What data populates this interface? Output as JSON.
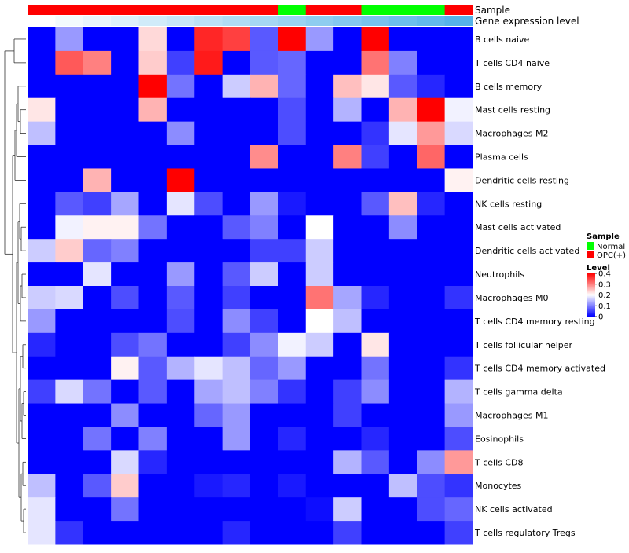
{
  "chart_data": {
    "type": "heatmap",
    "title": "",
    "rows": [
      "B cells naive",
      "T cells CD4 naive",
      "B cells memory",
      "Mast cells resting",
      "Macrophages M2",
      "Plasma cells",
      "Dendritic cells resting",
      "NK cells resting",
      "Mast cells activated",
      "Dendritic cells activated",
      "Neutrophils",
      "Macrophages M0",
      "T cells CD4 memory resting",
      "T cells follicular helper",
      "T cells CD4 memory activated",
      "T cells gamma delta",
      "Macrophages M1",
      "Eosinophils",
      "T cells CD8",
      "Monocytes",
      "NK cells activated",
      "T cells regulatory  Tregs"
    ],
    "column_count": 16,
    "sample_annotation": {
      "label": "Sample",
      "values": [
        "OPC(+)",
        "OPC(+)",
        "OPC(+)",
        "OPC(+)",
        "OPC(+)",
        "OPC(+)",
        "OPC(+)",
        "OPC(+)",
        "OPC(+)",
        "Normal",
        "OPC(+)",
        "OPC(+)",
        "Normal",
        "Normal",
        "Normal",
        "OPC(+)"
      ]
    },
    "expression_annotation": {
      "label": "Gene expression level",
      "values": [
        0.0,
        0.07,
        0.13,
        0.2,
        0.27,
        0.33,
        0.4,
        0.47,
        0.53,
        0.6,
        0.67,
        0.73,
        0.8,
        0.87,
        0.93,
        1.0
      ]
    },
    "values": [
      [
        0.0,
        0.12,
        0.0,
        0.0,
        0.23,
        0.0,
        0.37,
        0.35,
        0.07,
        0.4,
        0.12,
        0.0,
        0.4,
        0.0,
        0.0,
        0.0
      ],
      [
        0.0,
        0.33,
        0.3,
        0.0,
        0.24,
        0.05,
        0.38,
        0.0,
        0.07,
        0.08,
        0.0,
        0.0,
        0.31,
        0.1,
        0.0,
        0.0
      ],
      [
        0.0,
        0.0,
        0.0,
        0.0,
        0.4,
        0.09,
        0.0,
        0.16,
        0.26,
        0.08,
        0.0,
        0.25,
        0.22,
        0.07,
        0.03,
        0.0
      ],
      [
        0.22,
        0.0,
        0.0,
        0.0,
        0.26,
        0.0,
        0.0,
        0.0,
        0.0,
        0.06,
        0.0,
        0.14,
        0.0,
        0.26,
        0.4,
        0.19
      ],
      [
        0.15,
        0.0,
        0.0,
        0.0,
        0.0,
        0.11,
        0.0,
        0.0,
        0.0,
        0.06,
        0.0,
        0.0,
        0.04,
        0.18,
        0.28,
        0.17
      ],
      [
        0.0,
        0.0,
        0.0,
        0.0,
        0.0,
        0.0,
        0.0,
        0.0,
        0.29,
        0.0,
        0.0,
        0.3,
        0.05,
        0.0,
        0.32,
        0.0
      ],
      [
        0.0,
        0.0,
        0.26,
        0.0,
        0.0,
        0.4,
        0.0,
        0.0,
        0.0,
        0.0,
        0.0,
        0.0,
        0.0,
        0.0,
        0.0,
        0.21
      ],
      [
        0.0,
        0.07,
        0.05,
        0.13,
        0.0,
        0.18,
        0.06,
        0.0,
        0.12,
        0.02,
        0.0,
        0.0,
        0.07,
        0.25,
        0.03,
        0.0
      ],
      [
        0.0,
        0.19,
        0.21,
        0.21,
        0.09,
        0.0,
        0.0,
        0.07,
        0.1,
        0.0,
        0.2,
        0.0,
        0.0,
        0.11,
        0.0,
        0.0
      ],
      [
        0.16,
        0.24,
        0.08,
        0.1,
        0.0,
        0.0,
        0.0,
        0.0,
        0.05,
        0.05,
        0.16,
        0.0,
        0.0,
        0.0,
        0.0,
        0.0
      ],
      [
        0.0,
        0.0,
        0.18,
        0.0,
        0.0,
        0.12,
        0.0,
        0.07,
        0.16,
        0.0,
        0.16,
        0.0,
        0.0,
        0.0,
        0.0,
        0.0
      ],
      [
        0.16,
        0.17,
        0.0,
        0.06,
        0.0,
        0.07,
        0.0,
        0.05,
        0.0,
        0.0,
        0.31,
        0.13,
        0.03,
        0.0,
        0.0,
        0.04
      ],
      [
        0.12,
        0.0,
        0.0,
        0.0,
        0.0,
        0.06,
        0.0,
        0.11,
        0.05,
        0.0,
        0.2,
        0.15,
        0.0,
        0.0,
        0.0,
        0.0
      ],
      [
        0.03,
        0.0,
        0.0,
        0.06,
        0.09,
        0.0,
        0.0,
        0.05,
        0.11,
        0.19,
        0.16,
        0.0,
        0.22,
        0.0,
        0.0,
        0.0
      ],
      [
        0.0,
        0.0,
        0.0,
        0.21,
        0.07,
        0.14,
        0.18,
        0.15,
        0.08,
        0.12,
        0.0,
        0.0,
        0.09,
        0.0,
        0.0,
        0.04
      ],
      [
        0.05,
        0.17,
        0.09,
        0.0,
        0.07,
        0.0,
        0.13,
        0.15,
        0.1,
        0.04,
        0.0,
        0.05,
        0.11,
        0.0,
        0.0,
        0.14
      ],
      [
        0.0,
        0.0,
        0.0,
        0.11,
        0.0,
        0.0,
        0.08,
        0.12,
        0.0,
        0.0,
        0.0,
        0.05,
        0.0,
        0.0,
        0.0,
        0.12
      ],
      [
        0.0,
        0.0,
        0.09,
        0.0,
        0.1,
        0.0,
        0.0,
        0.12,
        0.0,
        0.03,
        0.0,
        0.0,
        0.03,
        0.0,
        0.0,
        0.06
      ],
      [
        0.0,
        0.0,
        0.0,
        0.17,
        0.03,
        0.0,
        0.0,
        0.0,
        0.0,
        0.0,
        0.0,
        0.14,
        0.07,
        0.0,
        0.11,
        0.28
      ],
      [
        0.15,
        0.0,
        0.07,
        0.24,
        0.0,
        0.0,
        0.02,
        0.03,
        0.0,
        0.02,
        0.0,
        0.0,
        0.0,
        0.15,
        0.06,
        0.04
      ],
      [
        0.18,
        0.0,
        0.0,
        0.09,
        0.0,
        0.0,
        0.0,
        0.0,
        0.0,
        0.0,
        0.01,
        0.16,
        0.0,
        0.0,
        0.06,
        0.08
      ],
      [
        0.18,
        0.04,
        0.0,
        0.0,
        0.0,
        0.0,
        0.0,
        0.03,
        0.0,
        0.0,
        0.0,
        0.05,
        0.0,
        0.0,
        0.0,
        0.05
      ]
    ],
    "color_scale": {
      "min": 0,
      "mid": 0.2,
      "max": 0.4,
      "low_color": "#0000ff",
      "mid_color": "#ffffff",
      "high_color": "#ff0000"
    },
    "legends": {
      "sample": {
        "title": "Sample",
        "items": [
          {
            "label": "Normal",
            "color": "#00ff00"
          },
          {
            "label": "OPC(+)",
            "color": "#ff0000"
          }
        ]
      },
      "level": {
        "title": "Level",
        "ticks": [
          "0.4",
          "0.3",
          "0.2",
          "0.1",
          "0"
        ],
        "tick_values": [
          0.4,
          0.3,
          0.2,
          0.1,
          0
        ]
      }
    },
    "sample_colors": {
      "Normal": "#00ff00",
      "OPC(+)": "#ff0000"
    },
    "expression_colors": {
      "low": "#ffffff",
      "high": "#56b4e9"
    },
    "dendrogram": "row"
  }
}
